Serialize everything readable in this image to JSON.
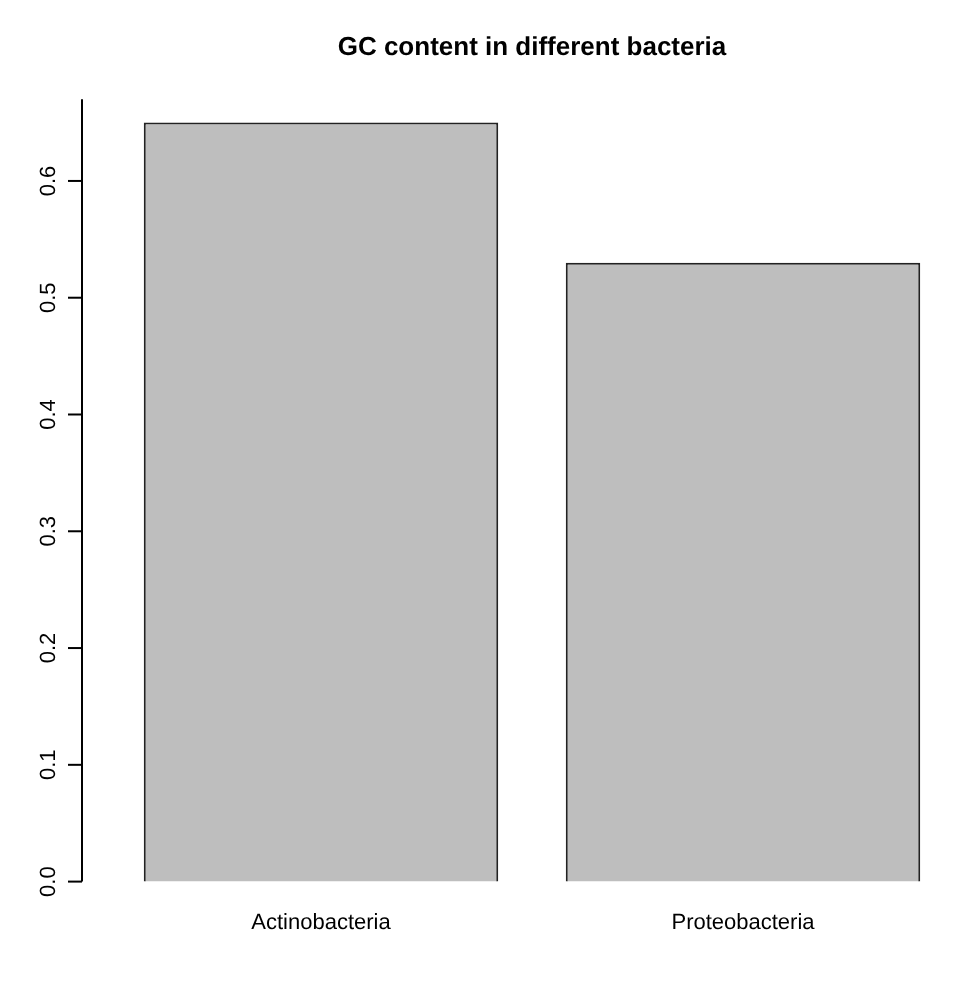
{
  "chart_data": {
    "type": "bar",
    "title": "GC content in different bacteria",
    "categories": [
      "Actinobacteria",
      "Proteobacteria"
    ],
    "values": [
      0.65,
      0.53
    ],
    "color": "#bebebe",
    "ylim": [
      0,
      0.67
    ],
    "yticks": [
      {
        "value": 0,
        "label": "0.0"
      },
      {
        "value": 0.1,
        "label": "0.1"
      },
      {
        "value": 0.2,
        "label": "0.2"
      },
      {
        "value": 0.3,
        "label": "0.3"
      },
      {
        "value": 0.4,
        "label": "0.4"
      },
      {
        "value": 0.5,
        "label": "0.5"
      },
      {
        "value": 0.6,
        "label": "0.6"
      }
    ],
    "grid": false,
    "legend": false
  }
}
